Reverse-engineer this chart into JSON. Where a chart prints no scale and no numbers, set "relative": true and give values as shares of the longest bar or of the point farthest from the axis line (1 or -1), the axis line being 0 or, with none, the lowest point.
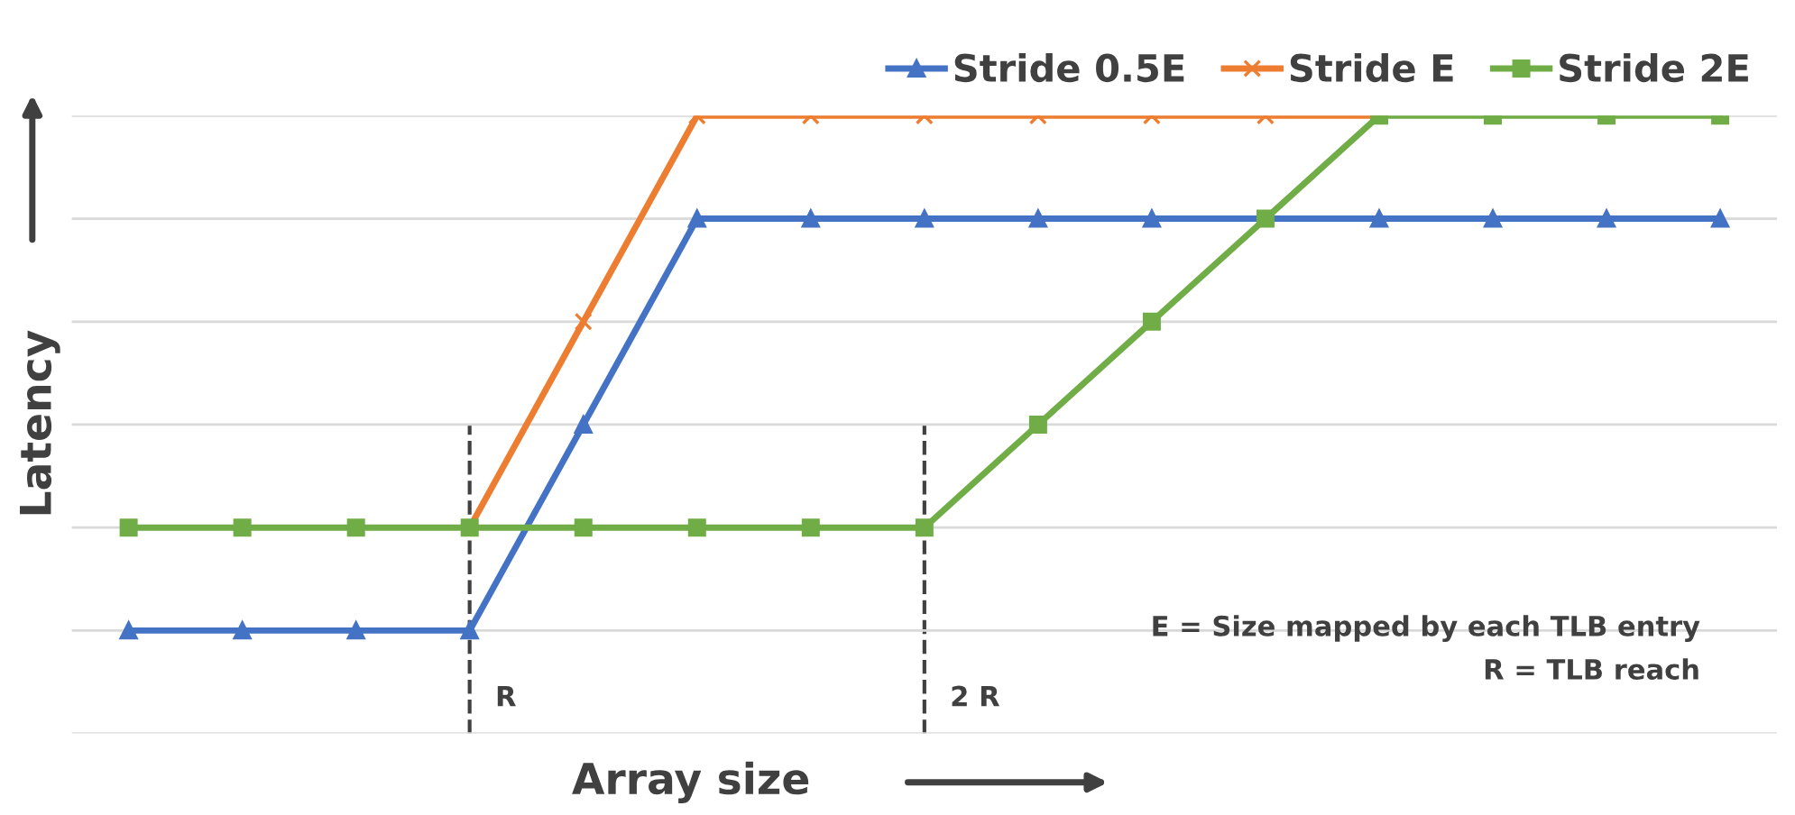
{
  "chart_data": {
    "type": "line",
    "relative": true,
    "xlabel": "Array size",
    "ylabel": "Latency",
    "categories": [
      null,
      null,
      null,
      null,
      null,
      null,
      null,
      null,
      null,
      null,
      null,
      null,
      null,
      null,
      null
    ],
    "series": [
      {
        "name": "Stride 0.5E",
        "color": "#4472c4",
        "marker": "triangle",
        "values": [
          0.1667,
          0.1667,
          0.1667,
          0.1667,
          0.5,
          0.8333,
          0.8333,
          0.8333,
          0.8333,
          0.8333,
          null,
          0.8333,
          0.8333,
          0.8333,
          0.8333
        ]
      },
      {
        "name": "Stride E",
        "color": "#ed7d31",
        "marker": "cross",
        "values": [
          null,
          null,
          null,
          0.3333,
          0.6667,
          1,
          1,
          1,
          1,
          1,
          1,
          1,
          null,
          null,
          null
        ]
      },
      {
        "name": "Stride 2E",
        "color": "#70ad47",
        "marker": "square",
        "values": [
          0.3333,
          0.3333,
          0.3333,
          0.3333,
          0.3333,
          0.3333,
          0.3333,
          0.3333,
          0.5,
          0.6667,
          0.8333,
          1,
          1,
          1,
          1
        ]
      }
    ],
    "annotations": [
      "E = Size mapped by each TLB entry",
      "R = TLB reach",
      "R",
      "2 R"
    ],
    "grid": "y",
    "legend": "top right"
  }
}
